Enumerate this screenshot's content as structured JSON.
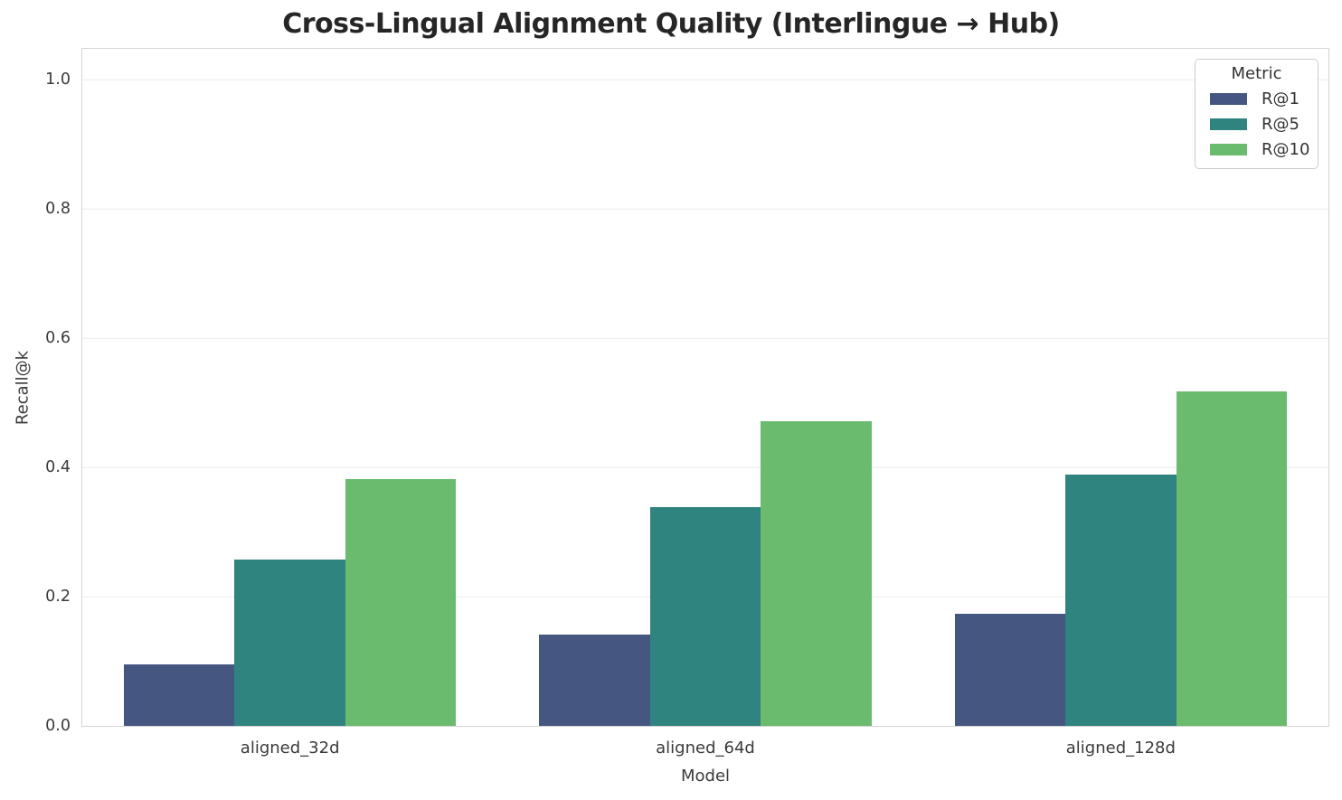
{
  "chart_data": {
    "type": "bar",
    "title": "Cross-Lingual Alignment Quality (Interlingue → Hub)",
    "xlabel": "Model",
    "ylabel": "Recall@k",
    "categories": [
      "aligned_32d",
      "aligned_64d",
      "aligned_128d"
    ],
    "series": [
      {
        "name": "R@1",
        "color": "#455681",
        "values": [
          0.095,
          0.142,
          0.174
        ]
      },
      {
        "name": "R@5",
        "color": "#2f8480",
        "values": [
          0.258,
          0.338,
          0.389
        ]
      },
      {
        "name": "R@10",
        "color": "#6bbb6e",
        "values": [
          0.382,
          0.472,
          0.518
        ]
      }
    ],
    "legend_title": "Metric",
    "legend_position": "upper right",
    "ytick_values": [
      0.0,
      0.2,
      0.4,
      0.6,
      0.8,
      1.0
    ],
    "ytick_labels": [
      "0.0",
      "0.2",
      "0.4",
      "0.6",
      "0.8",
      "1.0"
    ],
    "ylim": [
      0,
      1.048
    ],
    "grid": "horizontal",
    "group_width_fraction": 0.8
  }
}
